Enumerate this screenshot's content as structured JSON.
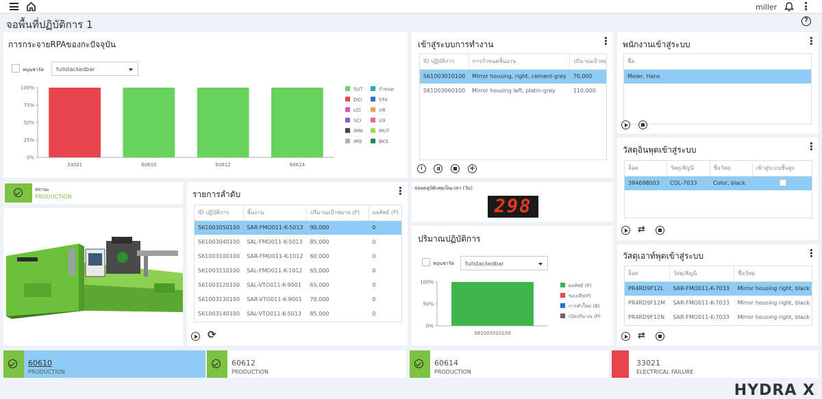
{
  "header": {
    "user": "miller"
  },
  "page_title": "จอพื้นที่ปฏิบัติการ 1",
  "rpa_card": {
    "title": "การกระจายRPAของกะปัจจุบัน",
    "rotate_label": "หมุนชาร์ต",
    "chart_type_value": "fullstackedbar",
    "chart_data": {
      "type": "bar",
      "stacked": true,
      "categories": [
        "33021",
        "60610",
        "60612",
        "60614"
      ],
      "series": [
        {
          "name": "SUT",
          "color": "#68d35c",
          "values": [
            0,
            100,
            100,
            100
          ]
        },
        {
          "name": "DCI",
          "color": "#e8464f",
          "values": [
            100,
            0,
            0,
            0
          ]
        }
      ],
      "yticks": [
        "100%",
        "75%",
        "50%",
        "25%",
        "0%"
      ],
      "ylim": [
        0,
        100
      ],
      "legend": [
        {
          "name": "SUT",
          "color": "#68d35c"
        },
        {
          "name": "กำหนด",
          "color": "#24a9c4"
        },
        {
          "name": "DCI",
          "color": "#e8464f"
        },
        {
          "name": "STA",
          "color": "#2a72c9"
        },
        {
          "name": "LCI",
          "color": "#d94fc4"
        },
        {
          "name": "U8",
          "color": "#f2a14a"
        },
        {
          "name": "SCI",
          "color": "#8e5ed1"
        },
        {
          "name": "U9",
          "color": "#e86a8a"
        },
        {
          "name": "IMN",
          "color": "#444444"
        },
        {
          "name": "MUT",
          "color": "#a7d84c"
        },
        {
          "name": "IMS",
          "color": "#b0b0b0"
        },
        {
          "name": "BKS",
          "color": "#1f8a5a"
        }
      ],
      "grid": false,
      "legend_position": "right"
    }
  },
  "login_card": {
    "title": "เข้าสู่ระบบการทำงาน",
    "columns": [
      "ID ปฏิบัติการ",
      "การกำหนดชิ้นงาน",
      "ปริมาณเป้าหมาย"
    ],
    "rows": [
      [
        "S61003010100",
        "Mirror housing, right, cement-grey",
        "70,000"
      ],
      [
        "S61003060100",
        "Mirror housing left, platin-grey",
        "110,000"
      ]
    ]
  },
  "staff_card": {
    "title": "พนักงานเข้าสู่ระบบ",
    "column": "ชื่อ",
    "rows": [
      "Meier, Hans"
    ]
  },
  "input_card": {
    "title": "วัสดุอินพุตเข้าสู่ระบบ",
    "columns": [
      "ล็อต",
      "วัสดุ/สัญนิ",
      "ชื่อวัสดุ",
      "เข้าสู่ระบบชั้นสูง"
    ],
    "rows": [
      [
        "384698003",
        "COL-7033",
        "Color, black",
        ""
      ]
    ]
  },
  "output_card": {
    "title": "วัสดุเอาท์พุตเข้าสู่ระบบ",
    "columns": [
      "ล็อต",
      "วัสดุ/สัญนิ",
      "ชื่อวัสดุ"
    ],
    "rows": [
      [
        "PR4RD9F12L",
        "SAR-FMO011-K-7033",
        "Mirror housing right, black"
      ],
      [
        "PR4RD9F12M",
        "SAR-FMO011-K-7033",
        "Mirror housing right, black"
      ],
      [
        "PR4RD9F12N",
        "SAR-FMO011-K-7033",
        "Mirror housing right, black"
      ]
    ]
  },
  "machine_status": {
    "label": "สถานะ",
    "state": "PRODUCTION"
  },
  "order_card": {
    "title": "รายการลำดับ",
    "columns": [
      "ID ปฏิบัติการ",
      "ชิ้นงาน",
      "ปริมาณเป้าหมาย (P)",
      "ผลลัพธ์ (P)"
    ],
    "rows": [
      [
        "S61003050100",
        "SAR-FMO011-K-5013",
        "90,000",
        "0"
      ],
      [
        "S61003040100",
        "SAL-FMO011-K-5013",
        "85,000",
        "0"
      ],
      [
        "S61003100100",
        "SAR-FMO011-K-1012",
        "60,000",
        "0"
      ],
      [
        "S61003110100",
        "SAL-FMO011-K-1012",
        "65,000",
        "0"
      ],
      [
        "S61003120100",
        "SAL-VTO011-K-9001",
        "65,000",
        "0"
      ],
      [
        "S61003130100",
        "SAR-VTO011-K-9001",
        "70,000",
        "0"
      ],
      [
        "S61003140100",
        "SAL-VTO011-K-5013",
        "85,000",
        "0"
      ]
    ]
  },
  "counter_card": {
    "title": "ปลอดอุบัติเหตุเป็นเวลา (วัน)",
    "value": "298"
  },
  "volume_card": {
    "title": "ปริมาณปฏิบัติการ",
    "rotate_label": "หมุนชาร์ต",
    "chart_type_value": "fullstackedbar",
    "chart_data": {
      "type": "bar",
      "stacked": true,
      "categories": [
        "S61003010100"
      ],
      "series": [
        {
          "name": "ผลลัพธ์ (P)",
          "color": "#3db54a",
          "values": [
            100
          ]
        }
      ],
      "yticks": [
        "100%",
        "50%",
        "0%"
      ],
      "ylim": [
        0,
        100
      ],
      "legend": [
        {
          "name": "ผลลัพธ์ (P)",
          "color": "#3db54a"
        },
        {
          "name": "ของเสีย(P)",
          "color": "#e8464f"
        },
        {
          "name": "การทำใหม่ (B)",
          "color": "#2a72c9"
        },
        {
          "name": "เปิดปริมาณ (P)",
          "color": "#666666"
        }
      ],
      "grid": false,
      "legend_position": "right"
    }
  },
  "bottom_machines": [
    {
      "name": "60610",
      "state": "PRODUCTION",
      "color": "#7dc242",
      "selected": true
    },
    {
      "name": "60612",
      "state": "PRODUCTION",
      "color": "#7dc242",
      "selected": false
    },
    {
      "name": "60614",
      "state": "PRODUCTION",
      "color": "#7dc242",
      "selected": false
    },
    {
      "name": "33021",
      "state": "ELECTRICAL FAILURE",
      "color": "#e8464f",
      "selected": false
    }
  ],
  "brand": "HYDRA X"
}
